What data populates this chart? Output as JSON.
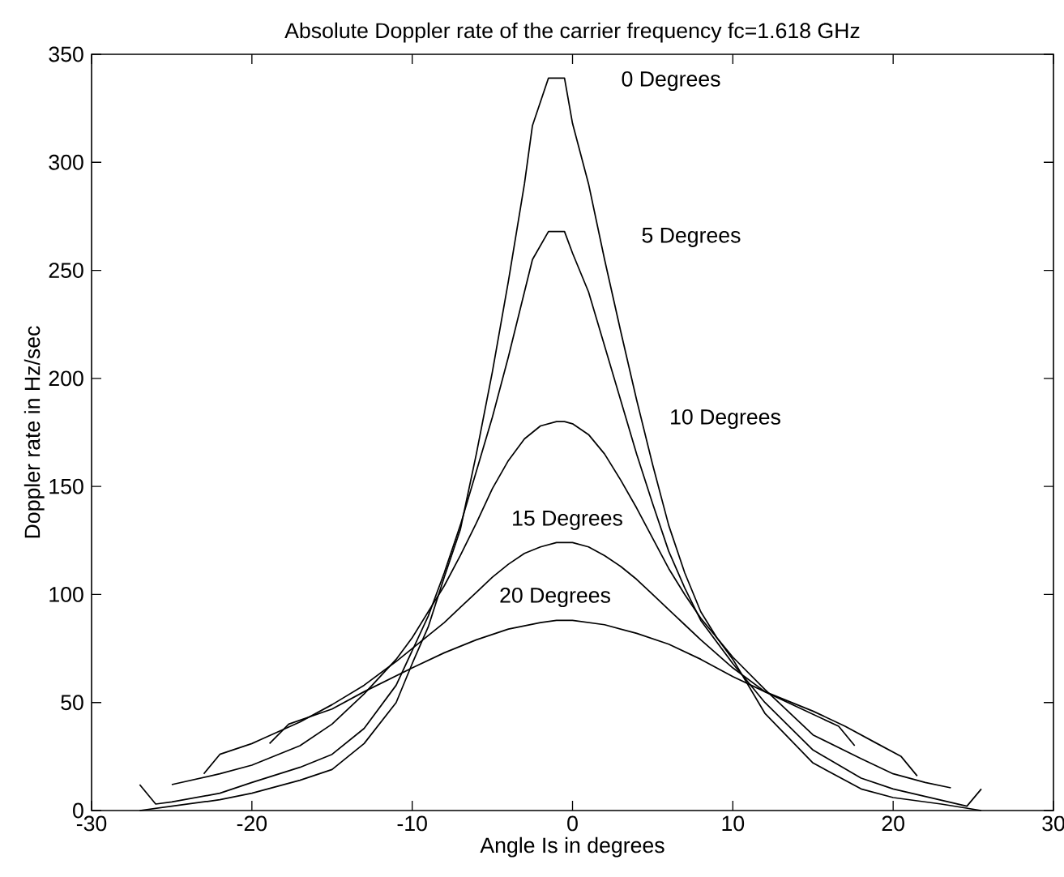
{
  "chart_data": {
    "type": "line",
    "title": "Absolute Doppler rate of the carrier frequency fc=1.618 GHz",
    "xlabel": "Angle Is in degrees",
    "ylabel": "Doppler rate in Hz/sec",
    "xlim": [
      -30,
      30
    ],
    "ylim": [
      0,
      350
    ],
    "xticks": [
      -30,
      -20,
      -10,
      0,
      10,
      20,
      30
    ],
    "yticks": [
      0,
      50,
      100,
      150,
      200,
      250,
      300,
      350
    ],
    "marker": "none",
    "line_style": "solid",
    "series": [
      {
        "color": "#000000",
        "x": [
          -27,
          -25,
          -22,
          -20,
          -17,
          -15,
          -13,
          -11,
          -10,
          -9,
          -8,
          -7,
          -6,
          -5,
          -4,
          -3,
          -2.5,
          -1.5,
          -0.5,
          0,
          1,
          2,
          3,
          4,
          5,
          6,
          7,
          8,
          9,
          10,
          12,
          15,
          18,
          20,
          23,
          25.5
        ],
        "values": [
          0,
          2,
          5,
          8,
          14,
          19,
          31,
          50,
          68,
          85,
          108,
          130,
          165,
          203,
          245,
          290,
          317,
          339,
          339,
          318,
          290,
          255,
          222,
          190,
          160,
          132,
          110,
          92,
          80,
          70,
          45,
          22,
          10,
          6,
          3,
          0
        ]
      },
      {
        "color": "#000000",
        "x": [
          -27,
          -26,
          -25,
          -22,
          -20,
          -17,
          -15,
          -13,
          -11,
          -10,
          -9,
          -8,
          -7,
          -6,
          -5,
          -4,
          -3,
          -2.5,
          -1.5,
          -0.5,
          0,
          1,
          2,
          3,
          4,
          5,
          6,
          7,
          8,
          10,
          12,
          15,
          18,
          20,
          22,
          24.6,
          25.5
        ],
        "values": [
          12,
          3,
          4,
          8,
          13,
          20,
          26,
          38,
          58,
          74,
          90,
          110,
          132,
          157,
          182,
          210,
          240,
          255,
          268,
          268,
          258,
          240,
          215,
          190,
          165,
          142,
          120,
          103,
          88,
          68,
          50,
          28,
          15,
          10,
          6.5,
          2,
          10
        ]
      },
      {
        "color": "#000000",
        "x": [
          -25,
          -22,
          -20,
          -17,
          -15,
          -13,
          -11,
          -10,
          -9,
          -8,
          -7,
          -6,
          -5,
          -4,
          -3,
          -2,
          -1,
          -0.5,
          0,
          1,
          2,
          3,
          4,
          5,
          6,
          7,
          8,
          10,
          12,
          15,
          18,
          20,
          22,
          23.6
        ],
        "values": [
          12,
          17,
          21,
          30,
          40,
          54,
          70,
          80,
          92,
          104,
          118,
          133,
          149,
          162,
          172,
          178,
          180,
          180,
          179,
          174,
          165,
          153,
          140,
          126,
          112,
          100,
          89,
          71,
          56,
          35,
          24,
          17,
          13,
          10.5
        ]
      },
      {
        "color": "#000000",
        "x": [
          -23,
          -22,
          -20,
          -19.4,
          -17,
          -15,
          -13,
          -11,
          -10,
          -9,
          -8,
          -7,
          -6,
          -5,
          -4,
          -3,
          -2,
          -1,
          0,
          1,
          2,
          3,
          4,
          5,
          6,
          7,
          8,
          10,
          12,
          15,
          17,
          19,
          20.5,
          21.5
        ],
        "values": [
          17,
          26,
          31,
          33,
          41,
          49,
          58,
          69,
          75,
          81,
          87,
          94,
          101,
          108,
          114,
          119,
          122,
          124,
          124,
          122,
          118,
          113,
          107,
          100,
          93,
          86,
          79,
          66,
          55,
          46,
          39,
          31,
          25,
          16
        ]
      },
      {
        "color": "#000000",
        "x": [
          -18.9,
          -17.7,
          -15,
          -13,
          -10,
          -8,
          -6,
          -4,
          -2,
          -1,
          0,
          2,
          4,
          6,
          8,
          10,
          12,
          14,
          16.6,
          17.6
        ],
        "values": [
          31,
          40,
          47,
          55,
          66,
          73,
          79,
          84,
          87,
          88,
          88,
          86,
          82,
          77,
          70,
          62,
          55,
          48,
          39,
          30
        ]
      }
    ],
    "annotations": [
      "0 Degrees",
      "5 Degrees",
      "10 Degrees",
      "15 Degrees",
      "20 Degrees"
    ]
  }
}
